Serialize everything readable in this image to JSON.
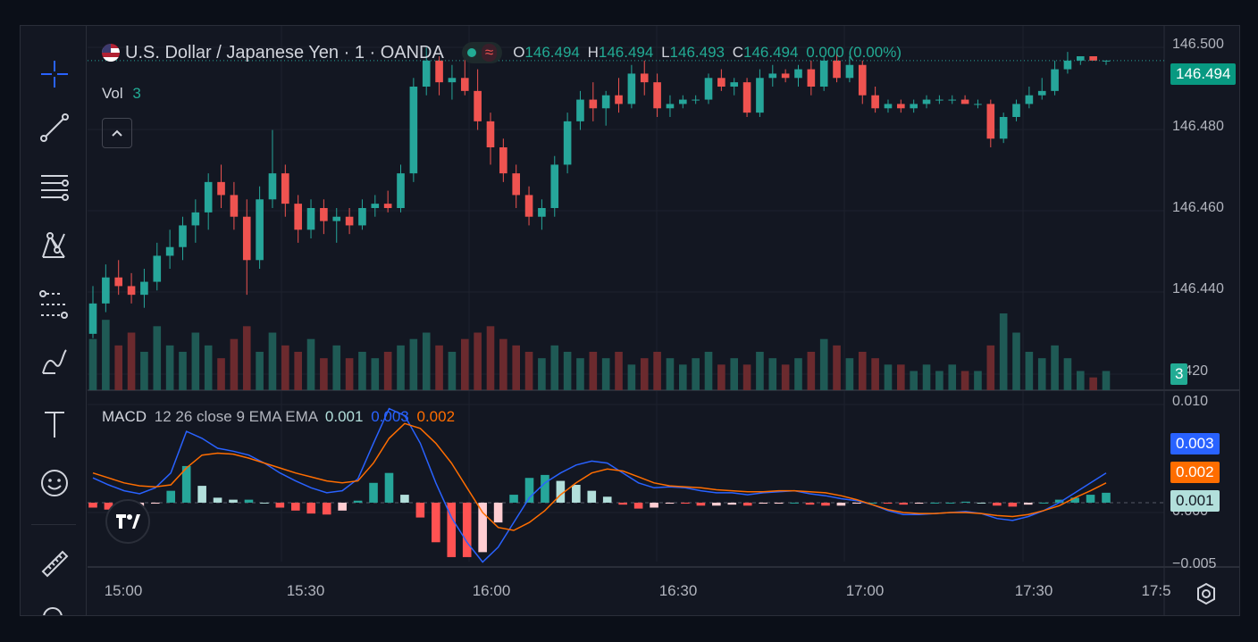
{
  "symbol": {
    "title": "U.S. Dollar / Japanese Yen · 1 · OANDA",
    "open_label": "O",
    "open": "146.494",
    "high_label": "H",
    "high": "146.494",
    "low_label": "L",
    "low": "146.493",
    "close_label": "C",
    "close": "146.494",
    "change": "0.000 (0.00%)"
  },
  "volume": {
    "label": "Vol",
    "value": "3"
  },
  "macd": {
    "label": "MACD",
    "params": "12 26 close 9 EMA EMA",
    "hist_value": "0.001",
    "macd_value": "0.003",
    "signal_value": "0.002"
  },
  "price_axis": {
    "ticks": [
      "146.500",
      "146.480",
      "146.460",
      "146.440",
      "6.420"
    ],
    "current_price": "146.494",
    "volume_badge": "3"
  },
  "macd_axis": {
    "ticks": [
      "0.010",
      "0.000",
      "−0.005"
    ],
    "macd_badge": "0.003",
    "signal_badge": "0.002",
    "hist_badge": "0.001"
  },
  "time_axis": [
    "15:00",
    "15:30",
    "16:00",
    "16:30",
    "17:00",
    "17:30",
    "17:5"
  ],
  "colors": {
    "up": "#26a69a",
    "down": "#ef5350",
    "macd": "#2962ff",
    "signal": "#ff6d00",
    "background": "#131722"
  },
  "toolbar_icons": [
    "crosshair-icon",
    "trend-line-icon",
    "fib-retracement-icon",
    "pattern-icon",
    "forecast-icon",
    "brush-icon",
    "text-icon",
    "emoji-icon",
    "ruler-icon"
  ],
  "chart_data": {
    "type": "candlestick",
    "ylim": [
      146.418,
      146.502
    ],
    "candles": [
      [
        146.431,
        146.442,
        146.43,
        146.438
      ],
      [
        146.438,
        146.447,
        146.436,
        146.444
      ],
      [
        146.444,
        146.448,
        146.44,
        146.442
      ],
      [
        146.442,
        146.445,
        146.438,
        146.44
      ],
      [
        146.44,
        146.446,
        146.437,
        146.443
      ],
      [
        146.443,
        146.452,
        146.441,
        146.449
      ],
      [
        146.449,
        146.455,
        146.446,
        146.451
      ],
      [
        146.451,
        146.458,
        146.448,
        146.456
      ],
      [
        146.456,
        146.462,
        146.452,
        146.459
      ],
      [
        146.459,
        146.468,
        146.455,
        146.466
      ],
      [
        146.466,
        146.47,
        146.46,
        146.463
      ],
      [
        146.463,
        146.466,
        146.455,
        146.458
      ],
      [
        146.458,
        146.462,
        146.44,
        146.448
      ],
      [
        146.448,
        146.465,
        146.446,
        146.462
      ],
      [
        146.462,
        146.478,
        146.46,
        146.468
      ],
      [
        146.468,
        146.47,
        146.458,
        146.461
      ],
      [
        146.461,
        146.463,
        146.452,
        146.455
      ],
      [
        146.455,
        146.462,
        146.453,
        146.46
      ],
      [
        146.46,
        146.462,
        146.454,
        146.457
      ],
      [
        146.457,
        146.46,
        146.452,
        146.458
      ],
      [
        146.458,
        146.46,
        146.454,
        146.456
      ],
      [
        146.456,
        146.462,
        146.455,
        146.46
      ],
      [
        146.46,
        146.463,
        146.458,
        146.461
      ],
      [
        146.461,
        146.464,
        146.459,
        146.46
      ],
      [
        146.46,
        146.47,
        146.459,
        146.468
      ],
      [
        146.468,
        146.49,
        146.466,
        146.488
      ],
      [
        146.488,
        146.497,
        146.486,
        146.494
      ],
      [
        146.494,
        146.495,
        146.486,
        146.489
      ],
      [
        146.489,
        146.493,
        146.485,
        146.49
      ],
      [
        146.49,
        146.495,
        146.486,
        146.487
      ],
      [
        146.487,
        146.492,
        146.478,
        146.48
      ],
      [
        146.48,
        146.482,
        146.47,
        146.474
      ],
      [
        146.474,
        146.476,
        146.466,
        146.468
      ],
      [
        146.468,
        146.47,
        146.46,
        146.463
      ],
      [
        146.463,
        146.465,
        146.456,
        146.458
      ],
      [
        146.458,
        146.462,
        146.455,
        146.46
      ],
      [
        146.46,
        146.472,
        146.458,
        146.47
      ],
      [
        146.47,
        146.482,
        146.468,
        146.48
      ],
      [
        146.48,
        146.487,
        146.478,
        146.485
      ],
      [
        146.485,
        146.489,
        146.48,
        146.483
      ],
      [
        146.483,
        146.487,
        146.479,
        146.486
      ],
      [
        146.486,
        146.49,
        146.482,
        146.484
      ],
      [
        146.484,
        146.493,
        146.483,
        146.491
      ],
      [
        146.491,
        146.494,
        146.486,
        146.489
      ],
      [
        146.489,
        146.491,
        146.481,
        146.483
      ],
      [
        146.483,
        146.486,
        146.481,
        146.484
      ],
      [
        146.484,
        146.486,
        146.483,
        146.485
      ],
      [
        146.485,
        146.486,
        146.484,
        146.485
      ],
      [
        146.485,
        146.491,
        146.484,
        146.49
      ],
      [
        146.49,
        146.492,
        146.487,
        146.488
      ],
      [
        146.488,
        146.49,
        146.486,
        146.489
      ],
      [
        146.489,
        146.49,
        146.481,
        146.482
      ],
      [
        146.482,
        146.492,
        146.481,
        146.49
      ],
      [
        146.49,
        146.493,
        146.488,
        146.491
      ],
      [
        146.491,
        146.492,
        146.489,
        146.49
      ],
      [
        146.49,
        146.493,
        146.488,
        146.492
      ],
      [
        146.492,
        146.494,
        146.486,
        146.488
      ],
      [
        146.488,
        146.495,
        146.487,
        146.494
      ],
      [
        146.494,
        146.496,
        146.489,
        146.49
      ],
      [
        146.49,
        146.495,
        146.489,
        146.493
      ],
      [
        146.493,
        146.494,
        146.484,
        146.486
      ],
      [
        146.486,
        146.488,
        146.482,
        146.483
      ],
      [
        146.483,
        146.485,
        146.482,
        146.484
      ],
      [
        146.484,
        146.485,
        146.482,
        146.483
      ],
      [
        146.483,
        146.485,
        146.482,
        146.484
      ],
      [
        146.484,
        146.486,
        146.483,
        146.485
      ],
      [
        146.485,
        146.486,
        146.484,
        146.485
      ],
      [
        146.485,
        146.486,
        146.484,
        146.485
      ],
      [
        146.485,
        146.486,
        146.484,
        146.484
      ],
      [
        146.484,
        146.485,
        146.483,
        146.484
      ],
      [
        146.484,
        146.485,
        146.474,
        146.476
      ],
      [
        146.476,
        146.482,
        146.475,
        146.481
      ],
      [
        146.481,
        146.485,
        146.48,
        146.484
      ],
      [
        146.484,
        146.488,
        146.483,
        146.486
      ],
      [
        146.486,
        146.49,
        146.485,
        146.487
      ],
      [
        146.487,
        146.494,
        146.486,
        146.492
      ],
      [
        146.492,
        146.496,
        146.491,
        146.494
      ],
      [
        146.494,
        146.495,
        146.493,
        146.495
      ],
      [
        146.495,
        146.495,
        146.494,
        146.494
      ],
      [
        146.494,
        146.494,
        146.493,
        146.494
      ]
    ],
    "volume": [
      8,
      11,
      7,
      9,
      6,
      10,
      7,
      6,
      9,
      7,
      5,
      8,
      10,
      6,
      9,
      7,
      6,
      8,
      5,
      7,
      5,
      6,
      5,
      6,
      7,
      8,
      9,
      7,
      6,
      8,
      9,
      10,
      8,
      7,
      6,
      5,
      7,
      6,
      5,
      6,
      5,
      6,
      4,
      5,
      6,
      5,
      4,
      5,
      6,
      4,
      5,
      4,
      6,
      5,
      4,
      5,
      6,
      8,
      7,
      5,
      6,
      5,
      4,
      4,
      3,
      4,
      3,
      4,
      3,
      3,
      7,
      12,
      9,
      6,
      5,
      7,
      5,
      3,
      2,
      3
    ],
    "macd": [
      0.0025,
      0.0018,
      0.0012,
      0.0009,
      0.0015,
      0.003,
      0.0072,
      0.0065,
      0.0055,
      0.0052,
      0.0048,
      0.004,
      0.003,
      0.0022,
      0.0015,
      0.001,
      0.0012,
      0.0024,
      0.006,
      0.0095,
      0.0088,
      0.006,
      0.002,
      -0.0015,
      -0.004,
      -0.006,
      -0.0045,
      -0.002,
      0.0005,
      0.002,
      0.003,
      0.0038,
      0.0042,
      0.004,
      0.003,
      0.002,
      0.0015,
      0.0016,
      0.0015,
      0.0012,
      0.001,
      0.001,
      0.0008,
      0.001,
      0.0011,
      0.0012,
      0.0009,
      0.0007,
      0.0004,
      0.0002,
      -0.0002,
      -0.0008,
      -0.0012,
      -0.0012,
      -0.0011,
      -0.001,
      -0.0009,
      -0.0011,
      -0.0016,
      -0.0018,
      -0.0014,
      -0.0008,
      0.0,
      0.001,
      0.002,
      0.003
    ],
    "signal": [
      0.003,
      0.0025,
      0.002,
      0.0017,
      0.0016,
      0.0018,
      0.0035,
      0.0048,
      0.005,
      0.0049,
      0.0045,
      0.004,
      0.0035,
      0.003,
      0.0026,
      0.0022,
      0.002,
      0.0022,
      0.004,
      0.0065,
      0.008,
      0.0075,
      0.006,
      0.004,
      0.0015,
      -0.001,
      -0.0025,
      -0.0028,
      -0.002,
      -0.0008,
      0.0008,
      0.002,
      0.003,
      0.0034,
      0.0032,
      0.0026,
      0.002,
      0.0017,
      0.0016,
      0.0015,
      0.0013,
      0.0012,
      0.0011,
      0.0011,
      0.0012,
      0.0012,
      0.0011,
      0.001,
      0.0007,
      0.0003,
      -0.0002,
      -0.0007,
      -0.001,
      -0.0011,
      -0.0011,
      -0.001,
      -0.001,
      -0.0011,
      -0.0013,
      -0.0014,
      -0.0012,
      -0.0008,
      -0.0003,
      0.0005,
      0.0012,
      0.002
    ]
  }
}
